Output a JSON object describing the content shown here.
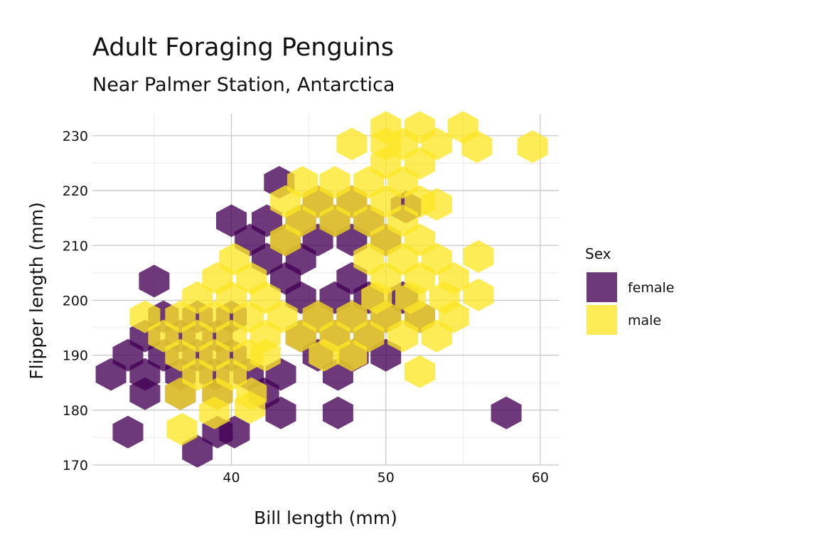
{
  "chart_data": {
    "type": "hexbin",
    "title": "Adult Foraging Penguins",
    "subtitle": "Near Palmer Station, Antarctica",
    "xlabel": "Bill length (mm)",
    "ylabel": "Flipper length (mm)",
    "xlim": [
      31,
      61.2
    ],
    "ylim": [
      170,
      234
    ],
    "x_ticks": [
      40,
      50,
      60
    ],
    "y_ticks": [
      170,
      180,
      190,
      200,
      210,
      220,
      230
    ],
    "grid": true,
    "legend": {
      "title": "Sex",
      "position": "right",
      "entries": [
        {
          "label": "female",
          "color": "#440154"
        },
        {
          "label": "male",
          "color": "#FDE725"
        }
      ]
    },
    "series": [
      {
        "name": "female",
        "color": "#440154",
        "hexes": [
          [
            33.3,
            176
          ],
          [
            37.8,
            172.5
          ],
          [
            39.1,
            176
          ],
          [
            40.2,
            176
          ],
          [
            43.2,
            179.5
          ],
          [
            46.9,
            179.5
          ],
          [
            57.8,
            179.5
          ],
          [
            34.4,
            183
          ],
          [
            36.7,
            183
          ],
          [
            39.1,
            183
          ],
          [
            42.1,
            183
          ],
          [
            32.2,
            186.5
          ],
          [
            34.4,
            186.5
          ],
          [
            36.7,
            186.5
          ],
          [
            38.9,
            186.5
          ],
          [
            41.1,
            186.5
          ],
          [
            43.2,
            186.5
          ],
          [
            46.9,
            186.5
          ],
          [
            33.3,
            190
          ],
          [
            35.6,
            190
          ],
          [
            37.8,
            190
          ],
          [
            40.0,
            190
          ],
          [
            45.6,
            190
          ],
          [
            47.9,
            190
          ],
          [
            50.0,
            190
          ],
          [
            34.4,
            193.5
          ],
          [
            36.7,
            193.5
          ],
          [
            39.1,
            193.5
          ],
          [
            44.5,
            193.5
          ],
          [
            46.7,
            193.5
          ],
          [
            48.9,
            193.5
          ],
          [
            35.6,
            197
          ],
          [
            37.8,
            197
          ],
          [
            40.0,
            197
          ],
          [
            45.6,
            197
          ],
          [
            47.8,
            197
          ],
          [
            50.0,
            197
          ],
          [
            52.2,
            197
          ],
          [
            44.5,
            200.5
          ],
          [
            46.7,
            200.5
          ],
          [
            48.9,
            200.5
          ],
          [
            51.1,
            200.5
          ],
          [
            35.0,
            203.5
          ],
          [
            43.5,
            204
          ],
          [
            47.8,
            204
          ],
          [
            42.3,
            207.5
          ],
          [
            44.5,
            207.5
          ],
          [
            41.2,
            211
          ],
          [
            43.5,
            211
          ],
          [
            45.6,
            211
          ],
          [
            47.8,
            211
          ],
          [
            50.0,
            211
          ],
          [
            40.0,
            214.5
          ],
          [
            42.3,
            214.5
          ],
          [
            44.5,
            214.5
          ],
          [
            46.7,
            214.5
          ],
          [
            48.9,
            214.5
          ],
          [
            45.6,
            218
          ],
          [
            47.8,
            218
          ],
          [
            51.3,
            217
          ],
          [
            43.1,
            221.5
          ]
        ]
      },
      {
        "name": "male",
        "color": "#FDE725",
        "hexes": [
          [
            36.8,
            176.5
          ],
          [
            38.9,
            179.5
          ],
          [
            41.2,
            180.5
          ],
          [
            36.7,
            183
          ],
          [
            39.1,
            183
          ],
          [
            41.3,
            183
          ],
          [
            37.8,
            186.5
          ],
          [
            40.0,
            186.5
          ],
          [
            36.7,
            190
          ],
          [
            38.9,
            190
          ],
          [
            41.1,
            190
          ],
          [
            42.2,
            190
          ],
          [
            46.0,
            190
          ],
          [
            47.8,
            190
          ],
          [
            52.2,
            187
          ],
          [
            35.6,
            193.5
          ],
          [
            37.8,
            193.5
          ],
          [
            40.0,
            193.5
          ],
          [
            42.2,
            193.5
          ],
          [
            44.5,
            193.5
          ],
          [
            46.7,
            193.5
          ],
          [
            48.9,
            193.5
          ],
          [
            51.1,
            193.5
          ],
          [
            53.3,
            193.5
          ],
          [
            34.4,
            197
          ],
          [
            36.7,
            197
          ],
          [
            38.9,
            197
          ],
          [
            41.1,
            197
          ],
          [
            43.3,
            197
          ],
          [
            45.6,
            197
          ],
          [
            47.8,
            197
          ],
          [
            50.0,
            197
          ],
          [
            52.2,
            197
          ],
          [
            54.4,
            197
          ],
          [
            37.8,
            200.5
          ],
          [
            40.0,
            200.5
          ],
          [
            42.2,
            200.5
          ],
          [
            49.4,
            200.5
          ],
          [
            51.6,
            200.5
          ],
          [
            53.8,
            200.5
          ],
          [
            56.0,
            201
          ],
          [
            39.1,
            204
          ],
          [
            41.3,
            204
          ],
          [
            50.0,
            204
          ],
          [
            52.2,
            204
          ],
          [
            54.4,
            204
          ],
          [
            40.2,
            207.5
          ],
          [
            48.9,
            207.5
          ],
          [
            51.1,
            207.5
          ],
          [
            53.3,
            207.5
          ],
          [
            56.0,
            208
          ],
          [
            43.5,
            211
          ],
          [
            50.0,
            211
          ],
          [
            52.2,
            211
          ],
          [
            44.5,
            214.5
          ],
          [
            46.7,
            214.5
          ],
          [
            48.9,
            214.5
          ],
          [
            51.1,
            214.5
          ],
          [
            43.5,
            218
          ],
          [
            45.6,
            218
          ],
          [
            47.8,
            218
          ],
          [
            50.0,
            218
          ],
          [
            52.2,
            218
          ],
          [
            53.3,
            217.5
          ],
          [
            44.6,
            221.5
          ],
          [
            46.7,
            221.5
          ],
          [
            48.9,
            221.5
          ],
          [
            51.1,
            221.5
          ],
          [
            50.0,
            225
          ],
          [
            52.2,
            225
          ],
          [
            47.8,
            228.5
          ],
          [
            50.0,
            228.5
          ],
          [
            51.1,
            228.5
          ],
          [
            53.3,
            228.5
          ],
          [
            55.9,
            228
          ],
          [
            59.5,
            228
          ],
          [
            50.0,
            231.5
          ],
          [
            52.2,
            231.5
          ],
          [
            55.0,
            231.5
          ]
        ]
      }
    ]
  }
}
